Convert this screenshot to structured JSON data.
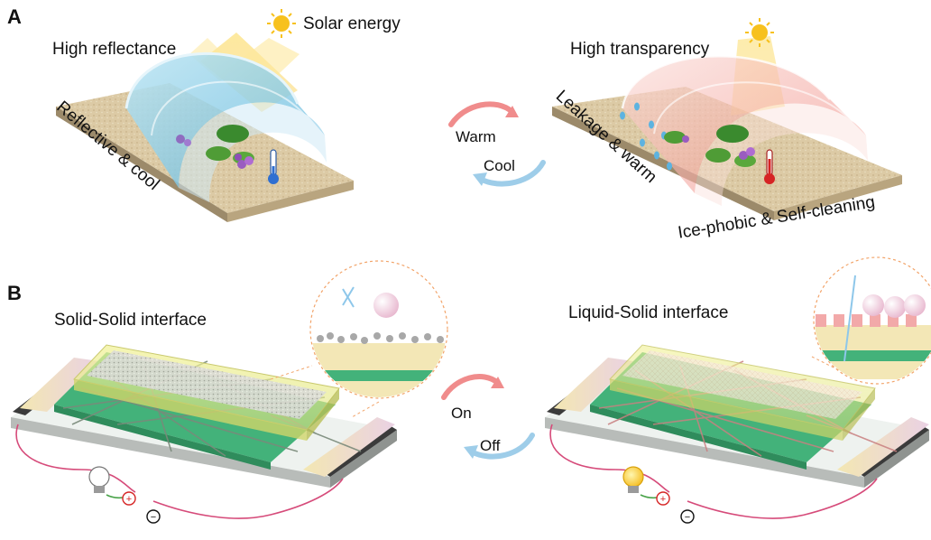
{
  "panel_a": {
    "letter": "A",
    "left": {
      "title": "High reflectance",
      "solar_label": "Solar energy",
      "ground_label": "Reflective & cool"
    },
    "switch": {
      "forward_label": "Warm",
      "backward_label": "Cool"
    },
    "right": {
      "title": "High transparency",
      "side_label": "Leakage & warm",
      "front_label": "Ice-phobic & Self-cleaning"
    }
  },
  "panel_b": {
    "letter": "B",
    "left": {
      "title": "Solid-Solid interface"
    },
    "switch": {
      "forward_label": "On",
      "backward_label": "Off"
    },
    "right": {
      "title": "Liquid-Solid interface"
    }
  },
  "colors": {
    "sun": "#f7c11e",
    "cool_dome": "#7fc6e6",
    "warm_dome": "#f2a9a2",
    "warm_arrow": "#f08c8c",
    "cool_arrow": "#9ecde9",
    "ground": "#d9c8a6",
    "electrode_green": "#43b27a",
    "electrode_yellow": "#e3e57a"
  }
}
